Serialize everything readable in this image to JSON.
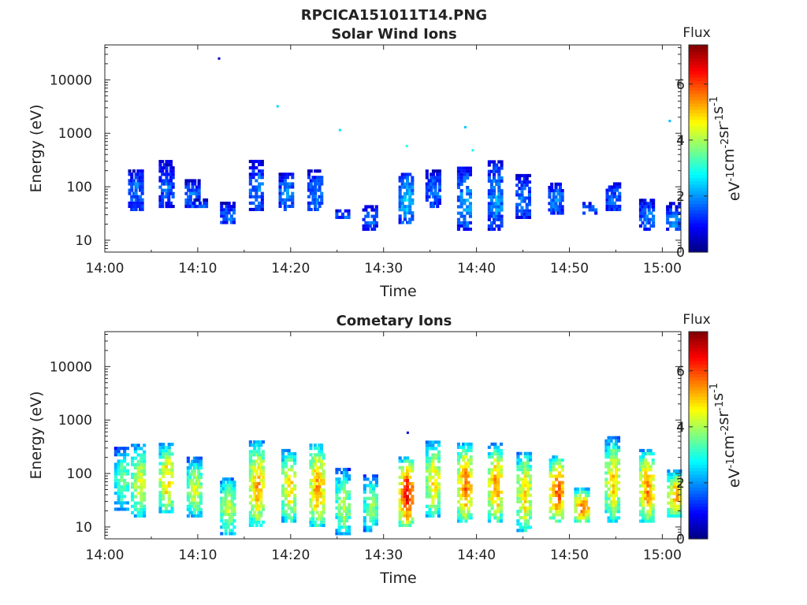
{
  "figure_title": "RPCICA151011T14.PNG",
  "chart_data": [
    {
      "type": "heatmap",
      "title": "Solar Wind Ions",
      "xlabel": "Time",
      "ylabel": "Energy (eV)",
      "x_ticks": [
        "14:00",
        "14:10",
        "14:20",
        "14:30",
        "14:40",
        "14:50",
        "15:00"
      ],
      "xlim_minutes": [
        0,
        62
      ],
      "y_scale": "log",
      "ylim": [
        6,
        45000
      ],
      "y_ticks": [
        10,
        100,
        1000,
        10000
      ],
      "y_tick_labels": [
        "10",
        "100",
        "1000",
        "10000"
      ],
      "colorbar": {
        "label": "Flux",
        "units": "eV-1cm-2sr-1s-1",
        "min": 0,
        "max": 7.4,
        "ticks": [
          0,
          2,
          4,
          6
        ],
        "colormap": "jet",
        "position": "right"
      },
      "grid": false,
      "bursts": [
        {
          "t": 3.3,
          "e_lo": 35,
          "e_hi": 220,
          "flux": 1.8
        },
        {
          "t": 6.6,
          "e_lo": 40,
          "e_hi": 300,
          "flux": 1.7
        },
        {
          "t": 9.4,
          "e_lo": 40,
          "e_hi": 130,
          "flux": 1.9
        },
        {
          "t": 10.2,
          "e_lo": 40,
          "e_hi": 60,
          "flux": 1.6
        },
        {
          "t": 13.2,
          "e_lo": 20,
          "e_hi": 50,
          "flux": 1.8
        },
        {
          "t": 16.3,
          "e_lo": 35,
          "e_hi": 300,
          "flux": 1.8
        },
        {
          "t": 19.5,
          "e_lo": 35,
          "e_hi": 190,
          "flux": 2.0
        },
        {
          "t": 22.6,
          "e_lo": 35,
          "e_hi": 200,
          "flux": 1.9
        },
        {
          "t": 25.6,
          "e_lo": 25,
          "e_hi": 40,
          "flux": 1.6
        },
        {
          "t": 28.5,
          "e_lo": 15,
          "e_hi": 45,
          "flux": 1.7
        },
        {
          "t": 32.4,
          "e_lo": 20,
          "e_hi": 180,
          "flux": 2.5
        },
        {
          "t": 35.3,
          "e_lo": 40,
          "e_hi": 200,
          "flux": 1.8
        },
        {
          "t": 38.7,
          "e_lo": 15,
          "e_hi": 230,
          "flux": 2.2
        },
        {
          "t": 42.0,
          "e_lo": 15,
          "e_hi": 300,
          "flux": 2.1
        },
        {
          "t": 45.0,
          "e_lo": 25,
          "e_hi": 170,
          "flux": 1.8
        },
        {
          "t": 48.5,
          "e_lo": 30,
          "e_hi": 120,
          "flux": 2.0
        },
        {
          "t": 52.2,
          "e_lo": 30,
          "e_hi": 55,
          "flux": 1.8
        },
        {
          "t": 54.7,
          "e_lo": 35,
          "e_hi": 120,
          "flux": 1.7
        },
        {
          "t": 58.3,
          "e_lo": 15,
          "e_hi": 60,
          "flux": 1.9
        },
        {
          "t": 61.2,
          "e_lo": 15,
          "e_hi": 50,
          "flux": 2.0
        }
      ],
      "isolated_points": [
        {
          "t": 12.3,
          "energy": 25000,
          "flux": 0.5
        },
        {
          "t": 18.6,
          "energy": 3200,
          "flux": 2.5
        },
        {
          "t": 25.3,
          "energy": 1150,
          "flux": 2.6
        },
        {
          "t": 32.5,
          "energy": 580,
          "flux": 3.0
        },
        {
          "t": 38.8,
          "energy": 1300,
          "flux": 2.4
        },
        {
          "t": 39.6,
          "energy": 480,
          "flux": 2.8
        },
        {
          "t": 60.8,
          "energy": 1700,
          "flux": 2.3
        }
      ]
    },
    {
      "type": "heatmap",
      "title": "Cometary Ions",
      "xlabel": "Time",
      "ylabel": "Energy (eV)",
      "x_ticks": [
        "14:00",
        "14:10",
        "14:20",
        "14:30",
        "14:40",
        "14:50",
        "15:00"
      ],
      "xlim_minutes": [
        0,
        62
      ],
      "y_scale": "log",
      "ylim": [
        6,
        45000
      ],
      "y_ticks": [
        10,
        100,
        1000,
        10000
      ],
      "y_tick_labels": [
        "10",
        "100",
        "1000",
        "10000"
      ],
      "colorbar": {
        "label": "Flux",
        "units": "eV-1cm-2sr-1s-1",
        "min": 0,
        "max": 7.4,
        "ticks": [
          0,
          2,
          4,
          6
        ],
        "colormap": "jet",
        "position": "right"
      },
      "grid": false,
      "bursts": [
        {
          "t": 1.8,
          "e_lo": 20,
          "e_hi": 330,
          "flux": 3.8
        },
        {
          "t": 3.6,
          "e_lo": 15,
          "e_hi": 380,
          "flux": 4.6
        },
        {
          "t": 6.6,
          "e_lo": 18,
          "e_hi": 380,
          "flux": 5.2
        },
        {
          "t": 9.6,
          "e_lo": 15,
          "e_hi": 200,
          "flux": 4.4
        },
        {
          "t": 13.2,
          "e_lo": 7,
          "e_hi": 90,
          "flux": 4.4
        },
        {
          "t": 16.3,
          "e_lo": 10,
          "e_hi": 420,
          "flux": 5.4
        },
        {
          "t": 19.8,
          "e_lo": 12,
          "e_hi": 300,
          "flux": 5.0
        },
        {
          "t": 22.8,
          "e_lo": 10,
          "e_hi": 380,
          "flux": 5.6
        },
        {
          "t": 25.6,
          "e_lo": 7,
          "e_hi": 120,
          "flux": 4.2
        },
        {
          "t": 28.6,
          "e_lo": 8,
          "e_hi": 90,
          "flux": 4.0
        },
        {
          "t": 32.4,
          "e_lo": 10,
          "e_hi": 200,
          "flux": 6.5
        },
        {
          "t": 35.3,
          "e_lo": 15,
          "e_hi": 420,
          "flux": 5.0
        },
        {
          "t": 38.7,
          "e_lo": 12,
          "e_hi": 370,
          "flux": 5.8
        },
        {
          "t": 42.0,
          "e_lo": 12,
          "e_hi": 370,
          "flux": 5.6
        },
        {
          "t": 45.1,
          "e_lo": 8,
          "e_hi": 270,
          "flux": 5.0
        },
        {
          "t": 48.6,
          "e_lo": 12,
          "e_hi": 230,
          "flux": 6.0
        },
        {
          "t": 51.3,
          "e_lo": 12,
          "e_hi": 55,
          "flux": 5.8
        },
        {
          "t": 54.6,
          "e_lo": 12,
          "e_hi": 480,
          "flux": 5.0
        },
        {
          "t": 58.3,
          "e_lo": 12,
          "e_hi": 300,
          "flux": 5.6
        },
        {
          "t": 61.3,
          "e_lo": 15,
          "e_hi": 120,
          "flux": 5.4
        }
      ],
      "isolated_points": [
        {
          "t": 32.6,
          "energy": 580,
          "flux": 0.6
        }
      ]
    }
  ]
}
